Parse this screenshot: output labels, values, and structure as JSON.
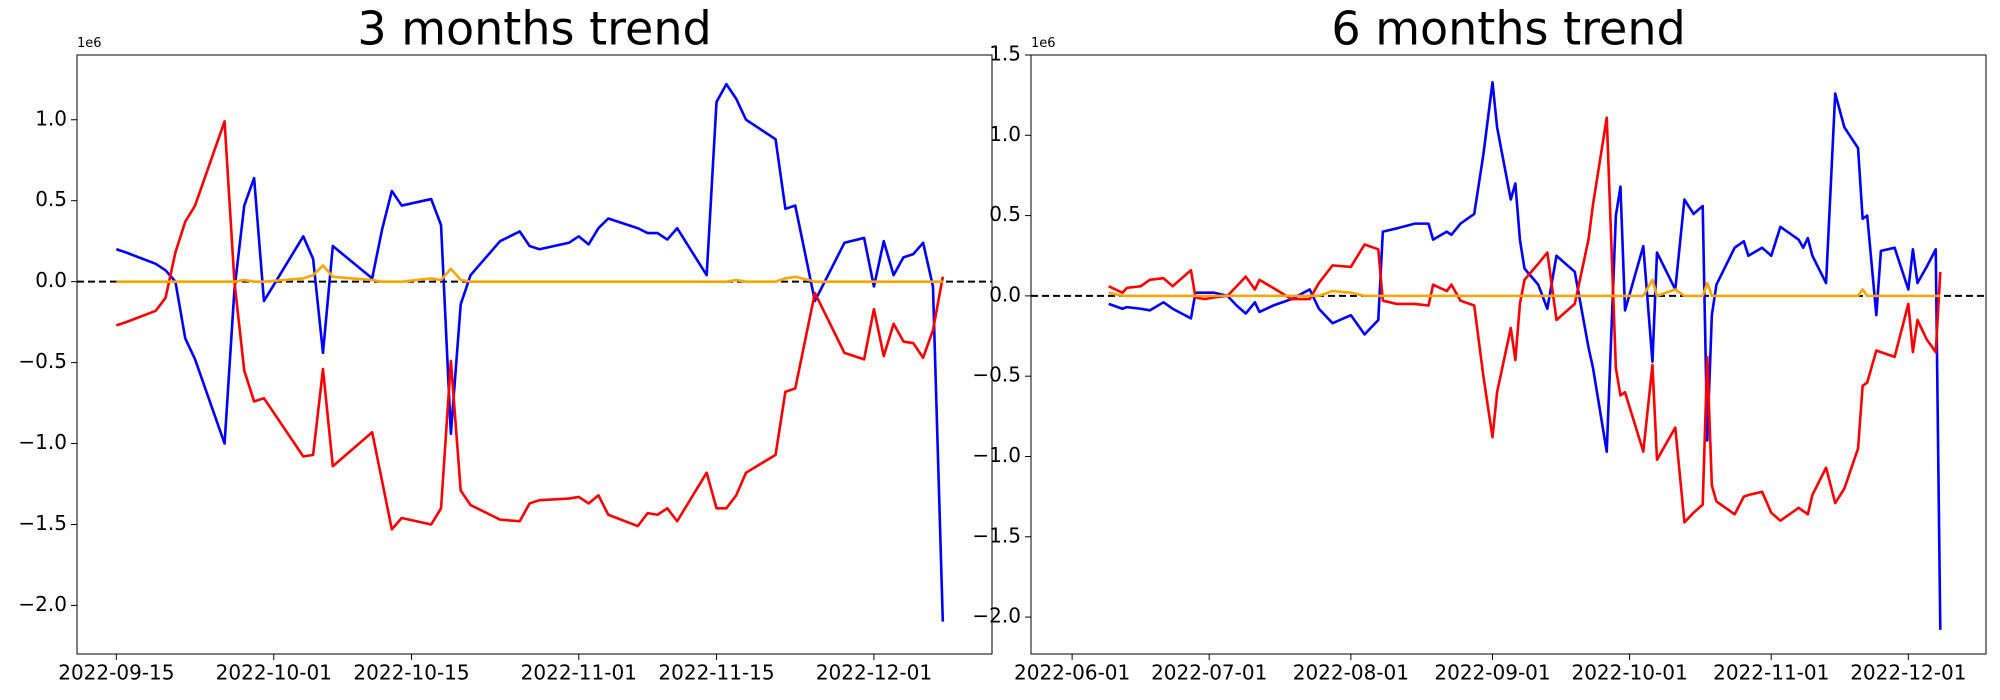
{
  "chart_data": [
    {
      "type": "line",
      "title": "3 months trend",
      "y_offset_label": "1e6",
      "x": [
        "2022-09-15",
        "2022-09-16",
        "2022-09-19",
        "2022-09-20",
        "2022-09-21",
        "2022-09-22",
        "2022-09-23",
        "2022-09-26",
        "2022-09-27",
        "2022-09-28",
        "2022-09-29",
        "2022-09-30",
        "2022-10-04",
        "2022-10-05",
        "2022-10-06",
        "2022-10-07",
        "2022-10-11",
        "2022-10-12",
        "2022-10-13",
        "2022-10-14",
        "2022-10-17",
        "2022-10-18",
        "2022-10-19",
        "2022-10-20",
        "2022-10-21",
        "2022-10-24",
        "2022-10-26",
        "2022-10-27",
        "2022-10-28",
        "2022-10-31",
        "2022-11-01",
        "2022-11-02",
        "2022-11-03",
        "2022-11-04",
        "2022-11-07",
        "2022-11-08",
        "2022-11-09",
        "2022-11-10",
        "2022-11-11",
        "2022-11-14",
        "2022-11-15",
        "2022-11-16",
        "2022-11-17",
        "2022-11-18",
        "2022-11-21",
        "2022-11-22",
        "2022-11-23",
        "2022-11-25",
        "2022-11-28",
        "2022-11-30",
        "2022-12-01",
        "2022-12-02",
        "2022-12-03",
        "2022-12-04",
        "2022-12-05",
        "2022-12-06",
        "2022-12-07",
        "2022-12-08"
      ],
      "series": [
        {
          "color": "#0000ff",
          "values": [
            0.2,
            0.18,
            0.11,
            0.07,
            0.0,
            -0.35,
            -0.48,
            -1.0,
            -0.05,
            0.47,
            0.64,
            -0.12,
            0.28,
            0.14,
            -0.44,
            0.22,
            0.02,
            0.32,
            0.56,
            0.47,
            0.51,
            0.35,
            -0.94,
            -0.14,
            0.04,
            0.25,
            0.31,
            0.22,
            0.2,
            0.24,
            0.28,
            0.23,
            0.33,
            0.39,
            0.33,
            0.3,
            0.3,
            0.26,
            0.33,
            0.04,
            1.11,
            1.22,
            1.13,
            1.0,
            0.88,
            0.45,
            0.47,
            -0.12,
            0.24,
            0.27,
            -0.03,
            0.25,
            0.04,
            0.15,
            0.17,
            0.24,
            -0.03,
            -2.1
          ]
        },
        {
          "color": "#ff0000",
          "values": [
            -0.27,
            -0.25,
            -0.18,
            -0.1,
            0.18,
            0.37,
            0.47,
            0.99,
            0.0,
            -0.55,
            -0.74,
            -0.72,
            -1.08,
            -1.07,
            -0.54,
            -1.14,
            -0.93,
            -1.23,
            -1.53,
            -1.46,
            -1.5,
            -1.4,
            -0.49,
            -1.29,
            -1.38,
            -1.47,
            -1.48,
            -1.37,
            -1.35,
            -1.34,
            -1.33,
            -1.37,
            -1.32,
            -1.44,
            -1.51,
            -1.43,
            -1.44,
            -1.4,
            -1.48,
            -1.18,
            -1.4,
            -1.4,
            -1.32,
            -1.18,
            -1.07,
            -0.68,
            -0.66,
            -0.07,
            -0.44,
            -0.48,
            -0.17,
            -0.46,
            -0.26,
            -0.37,
            -0.38,
            -0.47,
            -0.3,
            0.03
          ]
        },
        {
          "color": "#ffa500",
          "values": [
            0,
            0,
            0,
            0,
            0,
            0,
            0,
            0,
            0,
            0.01,
            0,
            0,
            0.02,
            0.04,
            0.1,
            0.03,
            0.01,
            0,
            0,
            0,
            0.02,
            0.01,
            0.08,
            0.01,
            0,
            0,
            0,
            0,
            0,
            0,
            0,
            0,
            0,
            0,
            0,
            0,
            0,
            0,
            0,
            0,
            0,
            0,
            0.01,
            0,
            0,
            0.02,
            0.03,
            0,
            0,
            0,
            0,
            0,
            0,
            0,
            0,
            0,
            0,
            0
          ]
        }
      ],
      "hline": 0,
      "hline_color": "#000000",
      "xlim": [
        "2022-09-11",
        "2022-12-13"
      ],
      "xticks": [
        "2022-09-15",
        "2022-10-01",
        "2022-10-15",
        "2022-11-01",
        "2022-11-15",
        "2022-12-01"
      ],
      "ylim": [
        -2.3,
        1.4
      ],
      "yticks": [
        {
          "value": -2,
          "label": "−2.0"
        },
        {
          "value": -1.5,
          "label": "−1.5"
        },
        {
          "value": -1,
          "label": "−1.0"
        },
        {
          "value": -0.5,
          "label": "−0.5"
        },
        {
          "value": 0,
          "label": "0.0"
        },
        {
          "value": 0.5,
          "label": "0.5"
        },
        {
          "value": 1,
          "label": "1.0"
        }
      ]
    },
    {
      "type": "line",
      "title": "6 months trend",
      "y_offset_label": "1e6",
      "x": [
        "2022-06-09",
        "2022-06-12",
        "2022-06-13",
        "2022-06-16",
        "2022-06-18",
        "2022-06-21",
        "2022-06-23",
        "2022-06-27",
        "2022-06-28",
        "2022-06-30",
        "2022-07-02",
        "2022-07-05",
        "2022-07-07",
        "2022-07-09",
        "2022-07-11",
        "2022-07-12",
        "2022-07-15",
        "2022-07-19",
        "2022-07-23",
        "2022-07-25",
        "2022-07-28",
        "2022-08-01",
        "2022-08-04",
        "2022-08-07",
        "2022-08-08",
        "2022-08-11",
        "2022-08-15",
        "2022-08-18",
        "2022-08-19",
        "2022-08-22",
        "2022-08-23",
        "2022-08-25",
        "2022-08-28",
        "2022-08-30",
        "2022-09-01",
        "2022-09-02",
        "2022-09-05",
        "2022-09-06",
        "2022-09-07",
        "2022-09-08",
        "2022-09-11",
        "2022-09-13",
        "2022-09-15",
        "2022-09-19",
        "2022-09-22",
        "2022-09-23",
        "2022-09-26",
        "2022-09-28",
        "2022-09-29",
        "2022-09-30",
        "2022-10-04",
        "2022-10-06",
        "2022-10-07",
        "2022-10-11",
        "2022-10-13",
        "2022-10-15",
        "2022-10-17",
        "2022-10-18",
        "2022-10-19",
        "2022-10-20",
        "2022-10-24",
        "2022-10-26",
        "2022-10-27",
        "2022-10-30",
        "2022-11-01",
        "2022-11-03",
        "2022-11-07",
        "2022-11-08",
        "2022-11-09",
        "2022-11-10",
        "2022-11-13",
        "2022-11-15",
        "2022-11-17",
        "2022-11-20",
        "2022-11-21",
        "2022-11-22",
        "2022-11-24",
        "2022-11-25",
        "2022-11-28",
        "2022-12-01",
        "2022-12-02",
        "2022-12-03",
        "2022-12-05",
        "2022-12-07",
        "2022-12-08"
      ],
      "series": [
        {
          "color": "#0000ff",
          "values": [
            -0.05,
            -0.08,
            -0.07,
            -0.08,
            -0.09,
            -0.04,
            -0.08,
            -0.14,
            0.02,
            0.02,
            0.02,
            0.0,
            -0.06,
            -0.11,
            -0.04,
            -0.1,
            -0.06,
            -0.02,
            0.04,
            -0.08,
            -0.17,
            -0.12,
            -0.24,
            -0.15,
            0.4,
            0.42,
            0.45,
            0.45,
            0.35,
            0.4,
            0.38,
            0.45,
            0.51,
            0.88,
            1.33,
            1.05,
            0.6,
            0.7,
            0.35,
            0.17,
            0.07,
            -0.08,
            0.25,
            0.15,
            -0.32,
            -0.45,
            -0.97,
            0.5,
            0.68,
            -0.09,
            0.31,
            -0.41,
            0.27,
            0.04,
            0.6,
            0.51,
            0.56,
            -0.9,
            -0.12,
            0.07,
            0.3,
            0.34,
            0.25,
            0.3,
            0.25,
            0.43,
            0.35,
            0.3,
            0.36,
            0.25,
            0.08,
            1.26,
            1.05,
            0.92,
            0.48,
            0.5,
            -0.12,
            0.28,
            0.3,
            0.04,
            0.29,
            0.08,
            0.18,
            0.29,
            -2.08
          ]
        },
        {
          "color": "#ff0000",
          "values": [
            0.06,
            0.02,
            0.05,
            0.06,
            0.1,
            0.11,
            0.06,
            0.16,
            -0.01,
            -0.02,
            -0.01,
            0.0,
            0.06,
            0.12,
            0.04,
            0.1,
            0.05,
            -0.02,
            -0.02,
            0.08,
            0.19,
            0.18,
            0.32,
            0.29,
            -0.03,
            -0.05,
            -0.05,
            -0.06,
            0.07,
            0.03,
            0.07,
            -0.03,
            -0.06,
            -0.5,
            -0.88,
            -0.6,
            -0.2,
            -0.4,
            -0.05,
            0.1,
            0.2,
            0.27,
            -0.15,
            -0.05,
            0.35,
            0.57,
            1.11,
            -0.45,
            -0.62,
            -0.6,
            -0.97,
            -0.43,
            -1.02,
            -0.82,
            -1.41,
            -1.35,
            -1.3,
            -0.38,
            -1.18,
            -1.28,
            -1.36,
            -1.25,
            -1.24,
            -1.22,
            -1.35,
            -1.4,
            -1.32,
            -1.34,
            -1.36,
            -1.24,
            -1.07,
            -1.29,
            -1.2,
            -0.95,
            -0.56,
            -0.54,
            -0.34,
            -0.35,
            -0.38,
            -0.05,
            -0.35,
            -0.15,
            -0.27,
            -0.35,
            0.15
          ]
        },
        {
          "color": "#ffa500",
          "values": [
            0.02,
            0,
            0,
            0,
            0,
            0,
            0,
            0,
            0,
            0,
            0,
            0,
            0,
            0,
            0,
            0,
            0,
            0,
            0,
            0,
            0.03,
            0.02,
            0,
            0,
            0,
            0,
            0,
            0,
            0,
            0,
            0,
            0,
            0,
            0,
            0,
            0,
            0,
            0,
            0,
            0,
            0,
            0,
            0,
            0,
            0,
            0,
            0,
            0,
            0,
            0,
            0,
            0.1,
            0,
            0.04,
            0,
            0,
            0,
            0.08,
            0,
            0,
            0,
            0,
            0,
            0,
            0,
            0,
            0,
            0,
            0,
            0,
            0,
            0,
            0,
            0,
            0.04,
            0,
            0,
            0,
            0,
            0,
            0,
            0,
            0,
            0,
            0
          ]
        }
      ],
      "hline": 0,
      "hline_color": "#000000",
      "xlim": [
        "2022-05-23",
        "2022-12-18"
      ],
      "xticks": [
        "2022-06-01",
        "2022-07-01",
        "2022-08-01",
        "2022-09-01",
        "2022-10-01",
        "2022-11-01",
        "2022-12-01"
      ],
      "ylim": [
        -2.23,
        1.5
      ],
      "yticks": [
        {
          "value": -2,
          "label": "−2.0"
        },
        {
          "value": -1.5,
          "label": "−1.5"
        },
        {
          "value": -1,
          "label": "−1.0"
        },
        {
          "value": -0.5,
          "label": "−0.5"
        },
        {
          "value": 0,
          "label": "0.0"
        },
        {
          "value": 0.5,
          "label": "0.5"
        },
        {
          "value": 1,
          "label": "1.0"
        },
        {
          "value": 1.5,
          "label": "1.5"
        }
      ]
    }
  ]
}
